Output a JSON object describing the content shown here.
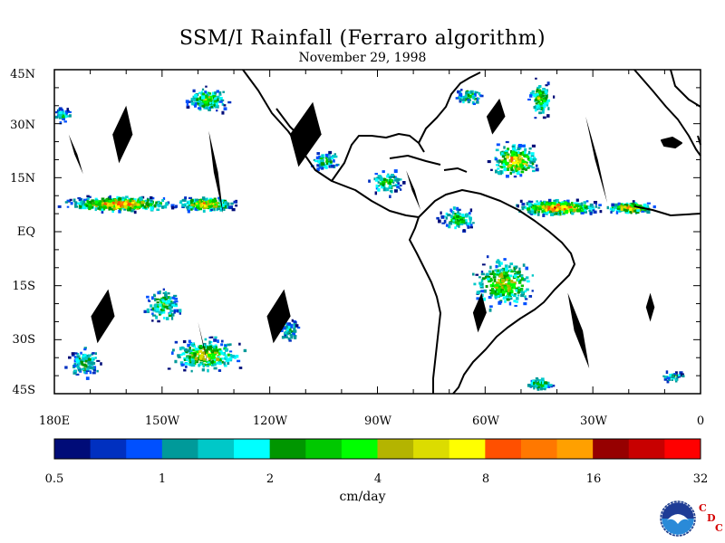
{
  "title": "SSM/I Rainfall (Ferraro algorithm)",
  "subtitle": "November 29, 1998",
  "lat_labels": [
    "45N",
    "30N",
    "15N",
    "EQ",
    "15S",
    "30S",
    "45S"
  ],
  "lon_labels": [
    "180E",
    "150W",
    "120W",
    "90W",
    "60W",
    "30W",
    "0"
  ],
  "colorbar": {
    "colors": [
      "#000c78",
      "#0030c0",
      "#0050ff",
      "#009a9a",
      "#00c8c8",
      "#00ffff",
      "#009600",
      "#00c800",
      "#00ff00",
      "#b4b400",
      "#dcdc00",
      "#ffff00",
      "#ff5000",
      "#ff7800",
      "#ffa000",
      "#960000",
      "#c80000",
      "#ff0000"
    ],
    "tick_labels": [
      "0.5",
      "1",
      "2",
      "4",
      "8",
      "16",
      "32"
    ],
    "units": "cm/day"
  },
  "logo": {
    "agency": "NOAA",
    "letters": [
      "C",
      "D",
      "C"
    ]
  },
  "chart_data": {
    "type": "heatmap",
    "title": "SSM/I Rainfall (Ferraro algorithm)",
    "subtitle": "November 29, 1998",
    "units": "cm/day",
    "x_range_deg": [
      -180,
      0
    ],
    "y_range_deg": [
      -45,
      45
    ],
    "x_ticks": [
      "180E",
      "150W",
      "120W",
      "90W",
      "60W",
      "30W",
      "0"
    ],
    "y_ticks": [
      "45N",
      "30N",
      "15N",
      "EQ",
      "15S",
      "30S",
      "45S"
    ],
    "color_scale_breaks": [
      0.5,
      1,
      2,
      4,
      8,
      16,
      32
    ],
    "missing_data_swaths": true
  }
}
